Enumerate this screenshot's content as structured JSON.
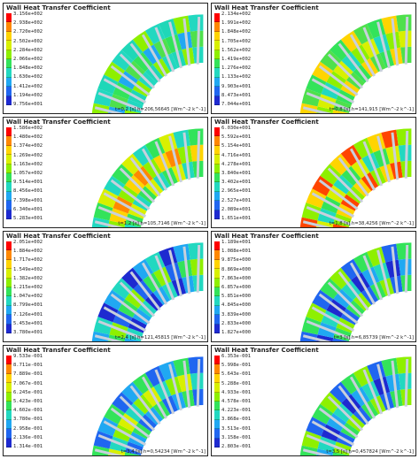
{
  "panel_title": "Wall Heat Transfer Coefficient",
  "legend_colors": [
    "#ff0000",
    "#ff8800",
    "#ffd400",
    "#d8f000",
    "#8ef000",
    "#33e35a",
    "#22d8c0",
    "#20a8f2",
    "#2066f0",
    "#1e2ad0"
  ],
  "panels": [
    {
      "labels": [
        "3.156e+002",
        "2.938e+002",
        "2.720e+002",
        "2.502e+002",
        "2.284e+002",
        "2.066e+002",
        "1.848e+002",
        "1.630e+002",
        "1.412e+002",
        "1.194e+002",
        "9.756e+001"
      ],
      "caption": "t=0,2 [s]  h=206,56645  [Wm^-2 k^-1]",
      "palette": [
        "#1fd7b8",
        "#4ee04c",
        "#8ef000",
        "#33e35a",
        "#22d8c0",
        "#20a8f2"
      ]
    },
    {
      "labels": [
        "2.134e+002",
        "1.991e+002",
        "1.848e+002",
        "1.705e+002",
        "1.562e+002",
        "1.419e+002",
        "1.276e+002",
        "1.133e+002",
        "9.903e+001",
        "8.473e+001",
        "7.044e+001"
      ],
      "caption": "t=0,8 [s]  h=141,915  [Wm^-2 k^-1]",
      "palette": [
        "#8ef000",
        "#33e35a",
        "#d8f000",
        "#ffd400",
        "#22d8c0",
        "#4ee04c"
      ]
    },
    {
      "labels": [
        "1.586e+002",
        "1.480e+002",
        "1.374e+002",
        "1.269e+002",
        "1.163e+002",
        "1.057e+002",
        "9.514e+001",
        "8.456e+001",
        "7.398e+001",
        "6.340e+001",
        "5.283e+001"
      ],
      "caption": "t=1,2 [s]  h=105,7146  [Wm^-2 k^-1]",
      "palette": [
        "#33e35a",
        "#8ef000",
        "#d8f000",
        "#ffd400",
        "#22d8c0",
        "#ff8800"
      ]
    },
    {
      "labels": [
        "6.030e+001",
        "5.592e+001",
        "5.154e+001",
        "4.716e+001",
        "4.278e+001",
        "3.840e+001",
        "3.402e+001",
        "2.965e+001",
        "2.527e+001",
        "2.089e+001",
        "1.651e+001"
      ],
      "caption": "t=1,8 [s]  h=38,4256  [Wm^-2 k^-1]",
      "palette": [
        "#33e35a",
        "#8ef000",
        "#d8f000",
        "#ffd400",
        "#22d8c0",
        "#ff4400"
      ]
    },
    {
      "labels": [
        "2.051e+002",
        "1.884e+002",
        "1.717e+002",
        "1.549e+002",
        "1.382e+002",
        "1.215e+002",
        "1.047e+002",
        "8.799e+001",
        "7.126e+001",
        "5.453e+001",
        "3.780e+001"
      ],
      "caption": "t=2,4 [s]  h=121,45815  [Wm^-2 k^-1]",
      "palette": [
        "#20a8f2",
        "#2066f0",
        "#22d8c0",
        "#33e35a",
        "#1e2ad0",
        "#8ef000"
      ]
    },
    {
      "labels": [
        "1.189e+001",
        "1.088e+001",
        "9.875e+000",
        "8.869e+000",
        "7.863e+000",
        "6.857e+000",
        "5.851e+000",
        "4.845e+000",
        "3.839e+000",
        "2.833e+000",
        "1.827e+000"
      ],
      "caption": "t=3 [s]  h=6,85739  [Wm^-2 k^-1]",
      "palette": [
        "#20a8f2",
        "#2066f0",
        "#22d8c0",
        "#33e35a",
        "#1e2ad0",
        "#8ef000"
      ]
    },
    {
      "labels": [
        "9.533e-001",
        "8.711e-001",
        "7.889e-001",
        "7.067e-001",
        "6.245e-001",
        "5.423e-001",
        "4.602e-001",
        "3.780e-001",
        "2.958e-001",
        "2.136e-001",
        "1.314e-001"
      ],
      "caption": "t=3,4 [s]  h=0,54234  [Wm^-2 k^-1]",
      "palette": [
        "#20a8f2",
        "#22d8c0",
        "#33e35a",
        "#8ef000",
        "#2066f0",
        "#d8f000"
      ]
    },
    {
      "labels": [
        "6.353e-001",
        "5.998e-001",
        "5.643e-001",
        "5.288e-001",
        "4.933e-001",
        "4.578e-001",
        "4.223e-001",
        "3.868e-001",
        "3.513e-001",
        "3.158e-001",
        "2.803e-001"
      ],
      "caption": "t=3,5 [s]  h=0,457824  [Wm^-2 k^-1]",
      "palette": [
        "#20a8f2",
        "#2066f0",
        "#22d8c0",
        "#33e35a",
        "#1e2ad0",
        "#8ef000"
      ]
    }
  ]
}
